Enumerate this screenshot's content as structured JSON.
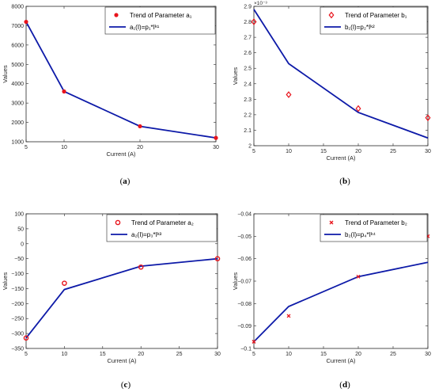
{
  "chart_data": [
    {
      "type": "line",
      "caption_letter": "a",
      "xlabel": "Current (A)",
      "ylabel": "Values",
      "xlim": [
        5,
        30
      ],
      "ylim": [
        1000,
        8000
      ],
      "xticks": [
        5,
        10,
        20,
        30
      ],
      "yticks": [
        1000,
        2000,
        3000,
        4000,
        5000,
        6000,
        7000,
        8000
      ],
      "exponent_label": "",
      "legend_position": "top-right",
      "series": [
        {
          "name": "Trend of Parameter a₁",
          "kind": "scatter",
          "marker": "dot",
          "color": "#e8141c",
          "x": [
            5,
            10,
            20,
            30
          ],
          "y": [
            7200,
            3600,
            1800,
            1200
          ]
        },
        {
          "name": "a₁(I)=p₁*Iᵏ¹",
          "kind": "line",
          "color": "#0d1aa8",
          "x": [
            5,
            10,
            20,
            30
          ],
          "y": [
            7200,
            3600,
            1800,
            1200
          ]
        }
      ]
    },
    {
      "type": "line",
      "caption_letter": "b",
      "xlabel": "Current (A)",
      "ylabel": "Values",
      "xlim": [
        5,
        30
      ],
      "ylim": [
        2.0,
        2.9
      ],
      "xticks": [
        5,
        10,
        15,
        20,
        25,
        30
      ],
      "yticks": [
        2,
        2.1,
        2.2,
        2.3,
        2.4,
        2.5,
        2.6,
        2.7,
        2.8,
        2.9
      ],
      "exponent_label": "×10⁻³",
      "legend_position": "top-right",
      "series": [
        {
          "name": "Trend of Parameter b₁",
          "kind": "scatter",
          "marker": "diamond",
          "color": "#e8141c",
          "x": [
            5,
            10,
            20,
            30
          ],
          "y": [
            2.8,
            2.33,
            2.24,
            2.18
          ]
        },
        {
          "name": "b₁(I)=p₂*Iᵏ²",
          "kind": "line",
          "color": "#0d1aa8",
          "x": [
            5,
            10,
            20,
            30
          ],
          "y": [
            2.88,
            2.53,
            2.215,
            2.05
          ]
        }
      ]
    },
    {
      "type": "line",
      "caption_letter": "c",
      "xlabel": "Current (A)",
      "ylabel": "Values",
      "xlim": [
        5,
        30
      ],
      "ylim": [
        -350,
        100
      ],
      "xticks": [
        5,
        10,
        15,
        20,
        25,
        30
      ],
      "yticks": [
        -350,
        -300,
        -250,
        -200,
        -150,
        -100,
        -50,
        0,
        50,
        100
      ],
      "exponent_label": "",
      "legend_position": "top-right",
      "series": [
        {
          "name": "Trend of Parameter a₂",
          "kind": "scatter",
          "marker": "circle",
          "color": "#e8141c",
          "x": [
            5,
            10,
            20,
            30
          ],
          "y": [
            -315,
            -132,
            -78,
            -50
          ]
        },
        {
          "name": "a₂(I)=p₃*Iᵏ³",
          "kind": "line",
          "color": "#0d1aa8",
          "x": [
            5,
            10,
            20,
            30
          ],
          "y": [
            -315,
            -153,
            -75,
            -50
          ]
        }
      ]
    },
    {
      "type": "line",
      "caption_letter": "d",
      "xlabel": "Current (A)",
      "ylabel": "Values",
      "xlim": [
        5,
        30
      ],
      "ylim": [
        -0.1,
        -0.04
      ],
      "xticks": [
        5,
        10,
        15,
        20,
        25,
        30
      ],
      "yticks": [
        -0.1,
        -0.09,
        -0.08,
        -0.07,
        -0.06,
        -0.05,
        -0.04
      ],
      "exponent_label": "",
      "legend_position": "top-right",
      "series": [
        {
          "name": "Trend of Parameter b₂",
          "kind": "scatter",
          "marker": "x",
          "color": "#e8141c",
          "x": [
            5,
            10,
            20,
            30
          ],
          "y": [
            -0.097,
            -0.0855,
            -0.068,
            -0.05
          ]
        },
        {
          "name": "b₂(I)=p₄*Iᵏ⁴",
          "kind": "line",
          "color": "#0d1aa8",
          "x": [
            5,
            10,
            20,
            30
          ],
          "y": [
            -0.097,
            -0.0813,
            -0.068,
            -0.0616
          ]
        }
      ]
    }
  ]
}
